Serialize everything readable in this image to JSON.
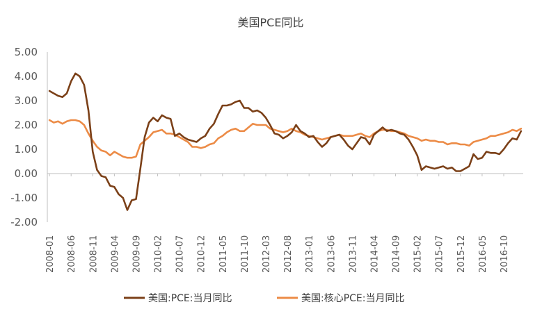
{
  "chart_data": {
    "type": "line",
    "title": "美国PCE同比",
    "xlabel": "",
    "ylabel": "",
    "ylim": [
      -2.0,
      5.0
    ],
    "y_ticks": [
      "5.00",
      "4.00",
      "3.00",
      "2.00",
      "1.00",
      "0.00",
      "-1.00",
      "-2.00"
    ],
    "y_tick_values": [
      5,
      4,
      3,
      2,
      1,
      0,
      -1,
      -2
    ],
    "x_tick_labels": [
      "2008-01",
      "2008-06",
      "2008-11",
      "2009-04",
      "2009-09",
      "2010-02",
      "2010-07",
      "2010-12",
      "2011-05",
      "2011-10",
      "2012-03",
      "2012-08",
      "2013-01",
      "2013-06",
      "2013-11",
      "2014-04",
      "2014-09",
      "2015-02",
      "2015-07",
      "2015-12",
      "2016-05",
      "2016-10"
    ],
    "grid": false,
    "legend_position": "bottom",
    "series": [
      {
        "name": "美国:PCE:当月同比",
        "color": "#7b4018",
        "values": [
          3.4,
          3.3,
          3.2,
          3.15,
          3.3,
          3.8,
          4.12,
          4.0,
          3.65,
          2.6,
          0.9,
          0.15,
          -0.1,
          -0.15,
          -0.5,
          -0.55,
          -0.85,
          -1.0,
          -1.5,
          -1.1,
          -1.05,
          0.2,
          1.5,
          2.1,
          2.3,
          2.15,
          2.4,
          2.3,
          2.25,
          1.55,
          1.65,
          1.5,
          1.4,
          1.35,
          1.3,
          1.45,
          1.55,
          1.85,
          2.05,
          2.45,
          2.8,
          2.8,
          2.85,
          2.95,
          3.0,
          2.7,
          2.7,
          2.55,
          2.6,
          2.5,
          2.3,
          2.0,
          1.65,
          1.6,
          1.45,
          1.55,
          1.7,
          2.0,
          1.75,
          1.65,
          1.5,
          1.55,
          1.3,
          1.1,
          1.25,
          1.5,
          1.55,
          1.6,
          1.4,
          1.15,
          1.0,
          1.25,
          1.5,
          1.45,
          1.2,
          1.6,
          1.75,
          1.9,
          1.75,
          1.8,
          1.75,
          1.65,
          1.6,
          1.4,
          1.1,
          0.75,
          0.15,
          0.3,
          0.25,
          0.2,
          0.25,
          0.3,
          0.2,
          0.25,
          0.1,
          0.1,
          0.2,
          0.3,
          0.8,
          0.6,
          0.65,
          0.9,
          0.85,
          0.85,
          0.8,
          1.0,
          1.25,
          1.45,
          1.4,
          1.75
        ]
      },
      {
        "name": "美国:核心PCE:当月同比",
        "color": "#ec8b46",
        "values": [
          2.2,
          2.1,
          2.15,
          2.05,
          2.15,
          2.2,
          2.2,
          2.15,
          2.0,
          1.65,
          1.35,
          1.1,
          0.95,
          0.9,
          0.75,
          0.9,
          0.8,
          0.7,
          0.65,
          0.65,
          0.7,
          1.2,
          1.35,
          1.5,
          1.7,
          1.75,
          1.8,
          1.65,
          1.65,
          1.6,
          1.5,
          1.4,
          1.3,
          1.1,
          1.1,
          1.05,
          1.1,
          1.2,
          1.25,
          1.45,
          1.55,
          1.7,
          1.8,
          1.85,
          1.75,
          1.75,
          1.9,
          2.05,
          2.0,
          2.0,
          2.0,
          1.85,
          1.8,
          1.75,
          1.7,
          1.75,
          1.85,
          1.75,
          1.7,
          1.6,
          1.55,
          1.5,
          1.45,
          1.4,
          1.45,
          1.5,
          1.55,
          1.6,
          1.55,
          1.55,
          1.55,
          1.6,
          1.65,
          1.55,
          1.5,
          1.65,
          1.75,
          1.8,
          1.8,
          1.75,
          1.75,
          1.7,
          1.65,
          1.55,
          1.5,
          1.45,
          1.35,
          1.4,
          1.35,
          1.35,
          1.3,
          1.3,
          1.2,
          1.25,
          1.25,
          1.2,
          1.2,
          1.15,
          1.3,
          1.35,
          1.4,
          1.45,
          1.55,
          1.55,
          1.6,
          1.65,
          1.7,
          1.8,
          1.75,
          1.85
        ]
      }
    ]
  }
}
